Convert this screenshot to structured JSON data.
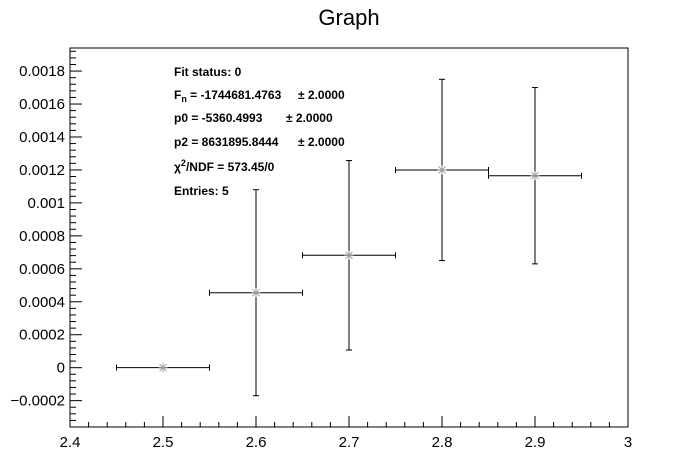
{
  "chart_data": {
    "type": "scatter",
    "title": "Graph",
    "xlabel": "",
    "ylabel": "",
    "xlim": [
      2.4,
      3.0
    ],
    "ylim": [
      -0.00036,
      0.00194
    ],
    "grid": false,
    "x_ticks": [
      {
        "value": 2.4,
        "label": "2.4"
      },
      {
        "value": 2.5,
        "label": "2.5"
      },
      {
        "value": 2.6,
        "label": "2.6"
      },
      {
        "value": 2.7,
        "label": "2.7"
      },
      {
        "value": 2.8,
        "label": "2.8"
      },
      {
        "value": 2.9,
        "label": "2.9"
      },
      {
        "value": 3.0,
        "label": "3"
      }
    ],
    "y_ticks": [
      {
        "value": -0.0002,
        "label": "−0.0002"
      },
      {
        "value": 0,
        "label": "0"
      },
      {
        "value": 0.0002,
        "label": "0.0002"
      },
      {
        "value": 0.0004,
        "label": "0.0004"
      },
      {
        "value": 0.0006,
        "label": "0.0006"
      },
      {
        "value": 0.0008,
        "label": "0.0008"
      },
      {
        "value": 0.001,
        "label": "0.001"
      },
      {
        "value": 0.0012,
        "label": "0.0012"
      },
      {
        "value": 0.0014,
        "label": "0.0014"
      },
      {
        "value": 0.0016,
        "label": "0.0016"
      },
      {
        "value": 0.0018,
        "label": "0.0018"
      }
    ],
    "points": [
      {
        "x": 2.5,
        "y": 0.0,
        "ex": 0.05,
        "ey_low": 0.0,
        "ey_high": 0.0
      },
      {
        "x": 2.6,
        "y": 0.000455,
        "ex": 0.05,
        "ey_low": 0.000625,
        "ey_high": 0.000625
      },
      {
        "x": 2.7,
        "y": 0.000682,
        "ex": 0.05,
        "ey_low": 0.000575,
        "ey_high": 0.000575
      },
      {
        "x": 2.8,
        "y": 0.0012,
        "ex": 0.05,
        "ey_low": 0.00055,
        "ey_high": 0.00055
      },
      {
        "x": 2.9,
        "y": 0.001165,
        "ex": 0.05,
        "ey_low": 0.000535,
        "ey_high": 0.000535
      }
    ],
    "stats_box": {
      "fit_status": "Fit status: 0",
      "fn_label": "F",
      "fn_sub": "n",
      "fn_value": " = -1744681.4763",
      "fn_err": "± 2.0000",
      "p0_value": "p0 = -5360.4993",
      "p0_err": "± 2.0000",
      "p2_value": "p2 = 8631895.8444",
      "p2_err": "± 2.0000",
      "chi_symbol": "χ",
      "chi_sup": "2",
      "chi_rest": "/NDF = 573.45/0",
      "entries": "Entries: 5"
    }
  }
}
